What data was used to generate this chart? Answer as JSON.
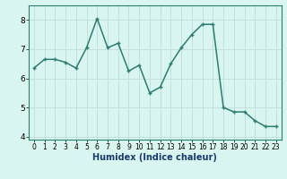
{
  "x": [
    0,
    1,
    2,
    3,
    4,
    5,
    6,
    7,
    8,
    9,
    10,
    11,
    12,
    13,
    14,
    15,
    16,
    17,
    18,
    19,
    20,
    21,
    22,
    23
  ],
  "y": [
    6.35,
    6.65,
    6.65,
    6.55,
    6.35,
    7.05,
    8.05,
    7.05,
    7.2,
    6.25,
    6.45,
    5.5,
    5.7,
    6.5,
    7.05,
    7.5,
    7.85,
    7.85,
    5.0,
    4.85,
    4.85,
    4.55,
    4.35,
    4.35
  ],
  "xlabel": "Humidex (Indice chaleur)",
  "ylim": [
    3.9,
    8.5
  ],
  "xlim": [
    -0.5,
    23.5
  ],
  "yticks": [
    4,
    5,
    6,
    7,
    8
  ],
  "xticks": [
    0,
    1,
    2,
    3,
    4,
    5,
    6,
    7,
    8,
    9,
    10,
    11,
    12,
    13,
    14,
    15,
    16,
    17,
    18,
    19,
    20,
    21,
    22,
    23
  ],
  "line_color": "#2e7d6e",
  "bg_color": "#d8f5f0",
  "grid_color": "#c0ddd8",
  "marker": "+",
  "marker_size": 3.5,
  "line_width": 1.1,
  "xlabel_color": "#1a3a6e",
  "xlabel_fontsize": 7.0,
  "tick_fontsize_x": 5.5,
  "tick_fontsize_y": 6.5
}
